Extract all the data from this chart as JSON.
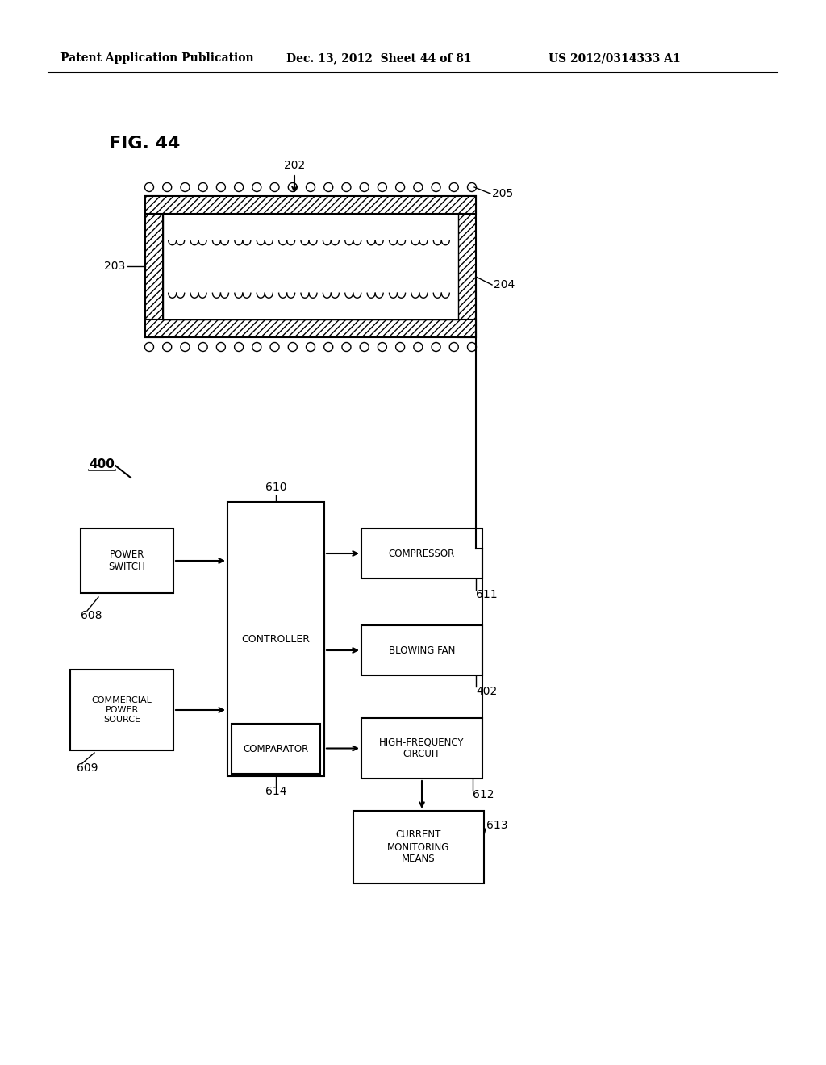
{
  "bg_color": "#ffffff",
  "header_left": "Patent Application Publication",
  "header_mid": "Dec. 13, 2012  Sheet 44 of 81",
  "header_right": "US 2012/0314333 A1",
  "fig_label": "FIG. 44",
  "lbl_202": "202",
  "lbl_203": "203",
  "lbl_204": "204",
  "lbl_205": "205",
  "lbl_400": "400",
  "lbl_608": "608",
  "lbl_609": "609",
  "lbl_610": "610",
  "lbl_611": "611",
  "lbl_402": "402",
  "lbl_612": "612",
  "lbl_613": "613",
  "lbl_614": "614",
  "txt_power_switch": "POWER\nSWITCH",
  "txt_commercial": "COMMERCIAL\nPOWER\nSOURCE",
  "txt_controller": "CONTROLLER",
  "txt_compressor": "COMPRESSOR",
  "txt_blowing_fan": "BLOWING FAN",
  "txt_hf_circuit": "HIGH-FREQUENCY\nCIRCUIT",
  "txt_current_mon": "CURRENT\nMONITORING\nMEANS",
  "txt_comparator": "COMPARATOR"
}
